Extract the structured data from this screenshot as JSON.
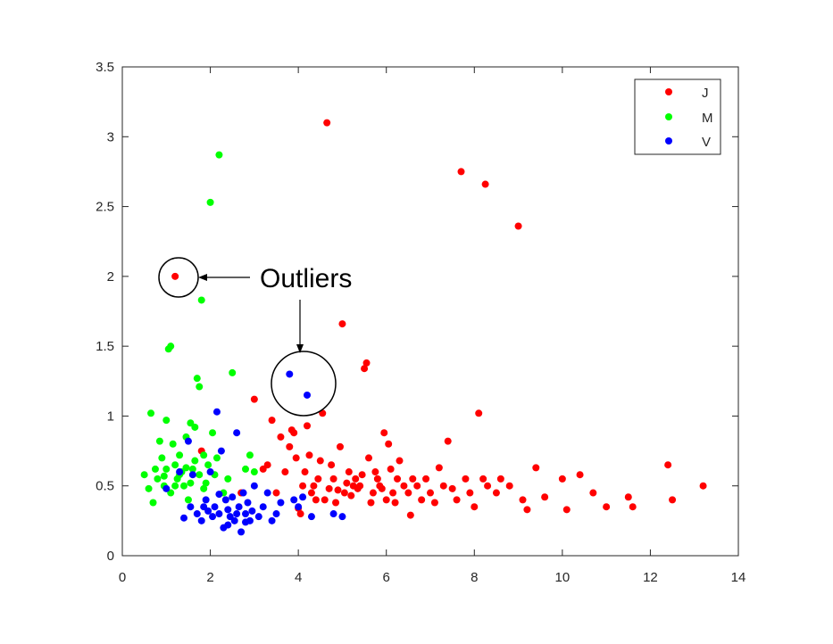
{
  "chart_data": {
    "type": "scatter",
    "title": "",
    "xlabel": "",
    "ylabel": "",
    "xlim": [
      0,
      14
    ],
    "ylim": [
      0,
      3.5
    ],
    "xticks": [
      "0",
      "2",
      "4",
      "6",
      "8",
      "10",
      "12",
      "14"
    ],
    "yticks": [
      "0",
      "0.5",
      "1",
      "1.5",
      "2",
      "2.5",
      "3",
      "3.5"
    ],
    "grid": false,
    "legend_placement": "top-right",
    "annotation": {
      "text": "Outliers",
      "circled_points": [
        [
          1.2,
          2.0
        ],
        [
          3.8,
          1.3
        ],
        [
          4.2,
          1.15
        ]
      ]
    },
    "series": [
      {
        "name": "J",
        "color": "#ff0000",
        "points": [
          [
            1.2,
            2.0
          ],
          [
            1.8,
            0.75
          ],
          [
            2.7,
            0.45
          ],
          [
            3.0,
            1.12
          ],
          [
            3.2,
            0.62
          ],
          [
            3.3,
            0.65
          ],
          [
            3.4,
            0.97
          ],
          [
            3.5,
            0.45
          ],
          [
            3.6,
            0.85
          ],
          [
            3.7,
            0.6
          ],
          [
            3.8,
            0.78
          ],
          [
            3.85,
            0.9
          ],
          [
            3.9,
            0.88
          ],
          [
            3.95,
            0.7
          ],
          [
            4.0,
            0.34
          ],
          [
            4.05,
            0.3
          ],
          [
            4.1,
            0.5
          ],
          [
            4.15,
            0.6
          ],
          [
            4.2,
            0.93
          ],
          [
            4.25,
            0.72
          ],
          [
            4.3,
            0.45
          ],
          [
            4.35,
            0.5
          ],
          [
            4.4,
            0.4
          ],
          [
            4.45,
            0.55
          ],
          [
            4.5,
            0.68
          ],
          [
            4.55,
            1.02
          ],
          [
            4.6,
            0.4
          ],
          [
            4.65,
            3.1
          ],
          [
            4.7,
            0.48
          ],
          [
            4.75,
            0.65
          ],
          [
            4.8,
            0.55
          ],
          [
            4.85,
            0.38
          ],
          [
            4.9,
            0.47
          ],
          [
            4.95,
            0.78
          ],
          [
            5.0,
            1.66
          ],
          [
            5.05,
            0.45
          ],
          [
            5.1,
            0.52
          ],
          [
            5.15,
            0.6
          ],
          [
            5.2,
            0.43
          ],
          [
            5.25,
            0.5
          ],
          [
            5.3,
            0.55
          ],
          [
            5.35,
            0.48
          ],
          [
            5.4,
            0.5
          ],
          [
            5.45,
            0.58
          ],
          [
            5.5,
            1.34
          ],
          [
            5.55,
            1.38
          ],
          [
            5.6,
            0.7
          ],
          [
            5.65,
            0.38
          ],
          [
            5.7,
            0.45
          ],
          [
            5.75,
            0.6
          ],
          [
            5.8,
            0.55
          ],
          [
            5.85,
            0.5
          ],
          [
            5.9,
            0.48
          ],
          [
            5.95,
            0.88
          ],
          [
            6.0,
            0.4
          ],
          [
            6.05,
            0.8
          ],
          [
            6.1,
            0.62
          ],
          [
            6.15,
            0.45
          ],
          [
            6.2,
            0.38
          ],
          [
            6.25,
            0.55
          ],
          [
            6.3,
            0.68
          ],
          [
            6.4,
            0.5
          ],
          [
            6.5,
            0.45
          ],
          [
            6.55,
            0.29
          ],
          [
            6.6,
            0.55
          ],
          [
            6.7,
            0.5
          ],
          [
            6.8,
            0.4
          ],
          [
            6.9,
            0.55
          ],
          [
            7.0,
            0.45
          ],
          [
            7.1,
            0.38
          ],
          [
            7.2,
            0.63
          ],
          [
            7.3,
            0.5
          ],
          [
            7.4,
            0.82
          ],
          [
            7.5,
            0.48
          ],
          [
            7.6,
            0.4
          ],
          [
            7.7,
            2.75
          ],
          [
            7.8,
            0.55
          ],
          [
            7.9,
            0.45
          ],
          [
            8.0,
            0.35
          ],
          [
            8.1,
            1.02
          ],
          [
            8.2,
            0.55
          ],
          [
            8.25,
            2.66
          ],
          [
            8.3,
            0.5
          ],
          [
            8.5,
            0.45
          ],
          [
            8.6,
            0.55
          ],
          [
            8.8,
            0.5
          ],
          [
            9.0,
            2.36
          ],
          [
            9.1,
            0.4
          ],
          [
            9.2,
            0.33
          ],
          [
            9.4,
            0.63
          ],
          [
            9.6,
            0.42
          ],
          [
            10.0,
            0.55
          ],
          [
            10.1,
            0.33
          ],
          [
            10.4,
            0.58
          ],
          [
            10.7,
            0.45
          ],
          [
            11.0,
            0.35
          ],
          [
            11.5,
            0.42
          ],
          [
            11.6,
            0.35
          ],
          [
            12.4,
            0.65
          ],
          [
            12.5,
            0.4
          ],
          [
            13.2,
            0.5
          ]
        ]
      },
      {
        "name": "M",
        "color": "#00ff00",
        "points": [
          [
            0.5,
            0.58
          ],
          [
            0.6,
            0.48
          ],
          [
            0.65,
            1.02
          ],
          [
            0.7,
            0.38
          ],
          [
            0.75,
            0.62
          ],
          [
            0.8,
            0.55
          ],
          [
            0.85,
            0.82
          ],
          [
            0.9,
            0.7
          ],
          [
            0.95,
            0.5
          ],
          [
            1.0,
            0.97
          ],
          [
            1.0,
            0.62
          ],
          [
            1.05,
            1.48
          ],
          [
            1.1,
            1.5
          ],
          [
            1.1,
            0.45
          ],
          [
            1.15,
            0.8
          ],
          [
            1.2,
            0.65
          ],
          [
            1.25,
            0.55
          ],
          [
            1.3,
            0.72
          ],
          [
            1.35,
            0.6
          ],
          [
            1.4,
            0.5
          ],
          [
            1.45,
            0.85
          ],
          [
            1.5,
            0.4
          ],
          [
            1.55,
            0.95
          ],
          [
            1.6,
            0.62
          ],
          [
            1.65,
            0.92
          ],
          [
            1.7,
            1.27
          ],
          [
            1.75,
            1.21
          ],
          [
            1.8,
            1.83
          ],
          [
            1.85,
            0.72
          ],
          [
            1.9,
            0.52
          ],
          [
            1.95,
            0.65
          ],
          [
            2.0,
            2.53
          ],
          [
            2.05,
            0.88
          ],
          [
            2.1,
            0.58
          ],
          [
            2.15,
            0.7
          ],
          [
            2.2,
            2.87
          ],
          [
            2.3,
            0.45
          ],
          [
            2.4,
            0.55
          ],
          [
            2.5,
            1.31
          ],
          [
            2.8,
            0.62
          ],
          [
            2.9,
            0.72
          ],
          [
            3.0,
            0.6
          ],
          [
            1.2,
            0.5
          ],
          [
            1.3,
            0.58
          ],
          [
            1.45,
            0.63
          ],
          [
            1.55,
            0.52
          ],
          [
            1.65,
            0.68
          ],
          [
            1.75,
            0.58
          ],
          [
            1.85,
            0.48
          ],
          [
            0.95,
            0.57
          ]
        ]
      },
      {
        "name": "V",
        "color": "#0000ff",
        "points": [
          [
            1.0,
            0.48
          ],
          [
            1.3,
            0.6
          ],
          [
            1.4,
            0.27
          ],
          [
            1.5,
            0.82
          ],
          [
            1.55,
            0.35
          ],
          [
            1.6,
            0.58
          ],
          [
            1.7,
            0.3
          ],
          [
            1.8,
            0.25
          ],
          [
            1.85,
            0.35
          ],
          [
            1.9,
            0.4
          ],
          [
            1.95,
            0.32
          ],
          [
            2.0,
            0.6
          ],
          [
            2.05,
            0.28
          ],
          [
            2.1,
            0.35
          ],
          [
            2.15,
            1.03
          ],
          [
            2.2,
            0.3
          ],
          [
            2.25,
            0.75
          ],
          [
            2.3,
            0.2
          ],
          [
            2.35,
            0.4
          ],
          [
            2.4,
            0.33
          ],
          [
            2.45,
            0.28
          ],
          [
            2.5,
            0.42
          ],
          [
            2.55,
            0.25
          ],
          [
            2.6,
            0.88
          ],
          [
            2.65,
            0.35
          ],
          [
            2.7,
            0.17
          ],
          [
            2.75,
            0.45
          ],
          [
            2.8,
            0.3
          ],
          [
            2.85,
            0.38
          ],
          [
            2.9,
            0.25
          ],
          [
            2.95,
            0.32
          ],
          [
            3.0,
            0.5
          ],
          [
            3.1,
            0.28
          ],
          [
            3.2,
            0.35
          ],
          [
            3.3,
            0.45
          ],
          [
            3.4,
            0.25
          ],
          [
            3.5,
            0.3
          ],
          [
            3.6,
            0.38
          ],
          [
            3.8,
            1.3
          ],
          [
            3.9,
            0.4
          ],
          [
            4.0,
            0.35
          ],
          [
            4.1,
            0.42
          ],
          [
            4.2,
            1.15
          ],
          [
            4.3,
            0.28
          ],
          [
            4.8,
            0.3
          ],
          [
            5.0,
            0.28
          ],
          [
            2.2,
            0.44
          ],
          [
            2.4,
            0.22
          ],
          [
            2.6,
            0.3
          ],
          [
            2.8,
            0.24
          ]
        ]
      }
    ]
  }
}
